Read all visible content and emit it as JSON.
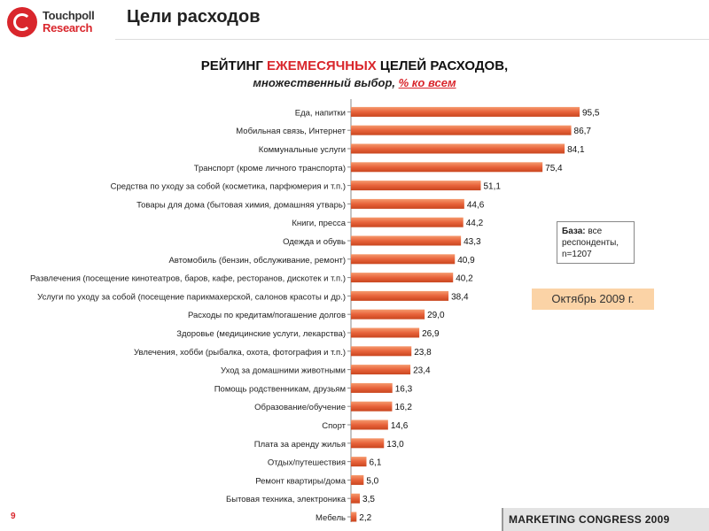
{
  "header": {
    "logo_name": "Touchpoll",
    "logo_sub": "Research",
    "page_title": "Цели расходов"
  },
  "chart_title": {
    "part1": "РЕЙТИНГ ",
    "highlight": "ЕЖЕМЕСЯЧНЫХ",
    "part2": " ЦЕЛЕЙ РАСХОДОВ,",
    "subtitle_part1": "множественный выбор, ",
    "subtitle_highlight": "% ко всем"
  },
  "base_box": {
    "label": "База:",
    "text": " все респонденты, n=1207"
  },
  "date_badge": "Октябрь 2009 г.",
  "page_number": "9",
  "footer": "MARKETING CONGRESS 2009",
  "colors": {
    "bar": "#e8633b",
    "accent": "#d9262c"
  },
  "chart_data": {
    "type": "bar",
    "orientation": "horizontal",
    "title": "РЕЙТИНГ ЕЖЕМЕСЯЧНЫХ ЦЕЛЕЙ РАСХОДОВ,",
    "subtitle": "множественный выбор, % ко всем",
    "xlim": [
      0,
      100
    ],
    "categories": [
      "Еда, напитки",
      "Мобильная связь, Интернет",
      "Коммунальные услуги",
      "Транспорт (кроме личного транспорта)",
      "Средства по уходу за собой (косметика, парфюмерия и т.п.)",
      "Товары для дома (бытовая химия, домашняя утварь)",
      "Книги, пресса",
      "Одежда и обувь",
      "Автомобиль (бензин, обслуживание, ремонт)",
      "Развлечения (посещение кинотеатров, баров, кафе, ресторанов, дискотек и т.п.)",
      "Услуги по уходу за собой (посещение парикмахерской, салонов красоты и др.)",
      "Расходы по кредитам/погашение долгов",
      "Здоровье (медицинские услуги, лекарства)",
      "Увлечения, хобби (рыбалка, охота, фотография и т.п.)",
      "Уход за домашними животными",
      "Помощь родственникам, друзьям",
      "Образование/обучение",
      "Спорт",
      "Плата за аренду жилья",
      "Отдых/путешествия",
      "Ремонт квартиры/дома",
      "Бытовая техника, электроника",
      "Мебель"
    ],
    "values": [
      95.5,
      86.7,
      84.1,
      75.4,
      51.1,
      44.6,
      44.2,
      43.3,
      40.9,
      40.2,
      38.4,
      29.0,
      26.9,
      23.8,
      23.4,
      16.3,
      16.2,
      14.6,
      13.0,
      6.1,
      5.0,
      3.5,
      2.2
    ],
    "value_labels": [
      "95,5",
      "86,7",
      "84,1",
      "75,4",
      "51,1",
      "44,6",
      "44,2",
      "43,3",
      "40,9",
      "40,2",
      "38,4",
      "29,0",
      "26,9",
      "23,8",
      "23,4",
      "16,3",
      "16,2",
      "14,6",
      "13,0",
      "6,1",
      "5,0",
      "3,5",
      "2,2"
    ]
  }
}
